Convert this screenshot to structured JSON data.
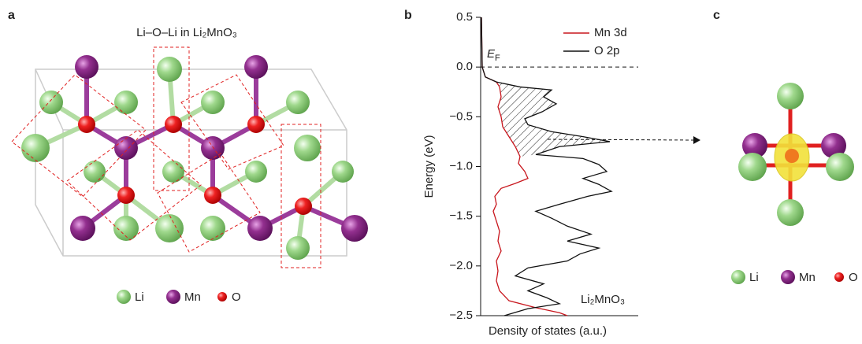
{
  "panels": {
    "a": {
      "label": "a",
      "title": "Li–O–Li in Li₂MnO₃",
      "legend": [
        "Li",
        "Mn",
        "O"
      ]
    },
    "c": {
      "label": "c",
      "legend": [
        "Li",
        "Mn",
        "O"
      ]
    }
  },
  "chart_data": {
    "type": "line",
    "panel_label": "b",
    "ylabel": "Energy (eV)",
    "xlabel": "Density of states (a.u.)",
    "ylim": [
      -2.5,
      0.5
    ],
    "xlim": [
      0,
      10
    ],
    "yticks": [
      {
        "value": -2.5,
        "label": "−2.5"
      },
      {
        "value": -2,
        "label": "−2.0"
      },
      {
        "value": -1.5,
        "label": "−1.5"
      },
      {
        "value": -1,
        "label": "−1.0"
      },
      {
        "value": -0.5,
        "label": "−0.5"
      },
      {
        "value": 0,
        "label": "0.0"
      },
      0.5
    ],
    "fermi_level": 0,
    "fermi_label": {
      "text": "E",
      "sub": "F"
    },
    "hatched_range": [
      -0.9,
      -0.15
    ],
    "annotation": "Li₂MnO₃",
    "legend": "upper right",
    "series": [
      {
        "name": "Mn 3d",
        "color": "#c8161d",
        "y": [
          0.5,
          0,
          -0.1,
          -0.15,
          -0.2,
          -0.3,
          -0.4,
          -0.5,
          -0.6,
          -0.7,
          -0.8,
          -0.9,
          -0.97,
          -1.05,
          -1.12,
          -1.17,
          -1.22,
          -1.3,
          -1.38,
          -1.45,
          -1.55,
          -1.65,
          -1.75,
          -1.85,
          -1.95,
          -2.05,
          -2.15,
          -2.25,
          -2.35,
          -2.42,
          -2.47,
          -2.5
        ],
        "x": [
          0.05,
          0.1,
          0.3,
          1,
          1.2,
          1.3,
          1.1,
          1.3,
          1.4,
          1.8,
          2.2,
          2.5,
          2.4,
          2.8,
          3,
          2.2,
          1.3,
          0.9,
          1,
          0.8,
          1,
          1.2,
          1.1,
          1.3,
          1,
          1.1,
          1,
          1.2,
          1.8,
          3.5,
          5,
          5.5
        ]
      },
      {
        "name": "O 2p",
        "color": "#111111",
        "y": [
          0.5,
          0.2,
          0,
          -0.1,
          -0.15,
          -0.2,
          -0.23,
          -0.3,
          -0.37,
          -0.45,
          -0.52,
          -0.58,
          -0.65,
          -0.7,
          -0.75,
          -0.8,
          -0.88,
          -0.92,
          -0.98,
          -1.05,
          -1.12,
          -1.18,
          -1.25,
          -1.3,
          -1.38,
          -1.45,
          -1.52,
          -1.6,
          -1.68,
          -1.75,
          -1.82,
          -1.88,
          -1.95,
          -2.02,
          -2.1,
          -2.18,
          -2.25,
          -2.32,
          -2.38,
          -2.43,
          -2.5
        ],
        "x": [
          0.05,
          0.08,
          0.1,
          0.3,
          1,
          2.5,
          4.5,
          4,
          4.8,
          3.9,
          2.8,
          3,
          4.5,
          6.5,
          8.2,
          5,
          3.5,
          6.5,
          7.5,
          8,
          6.5,
          7.5,
          8.3,
          6.8,
          5,
          3.5,
          4.5,
          5.5,
          7,
          5.5,
          7.5,
          6.3,
          5.5,
          3,
          2.2,
          4,
          3,
          4.2,
          5,
          3,
          1.5
        ]
      }
    ]
  }
}
